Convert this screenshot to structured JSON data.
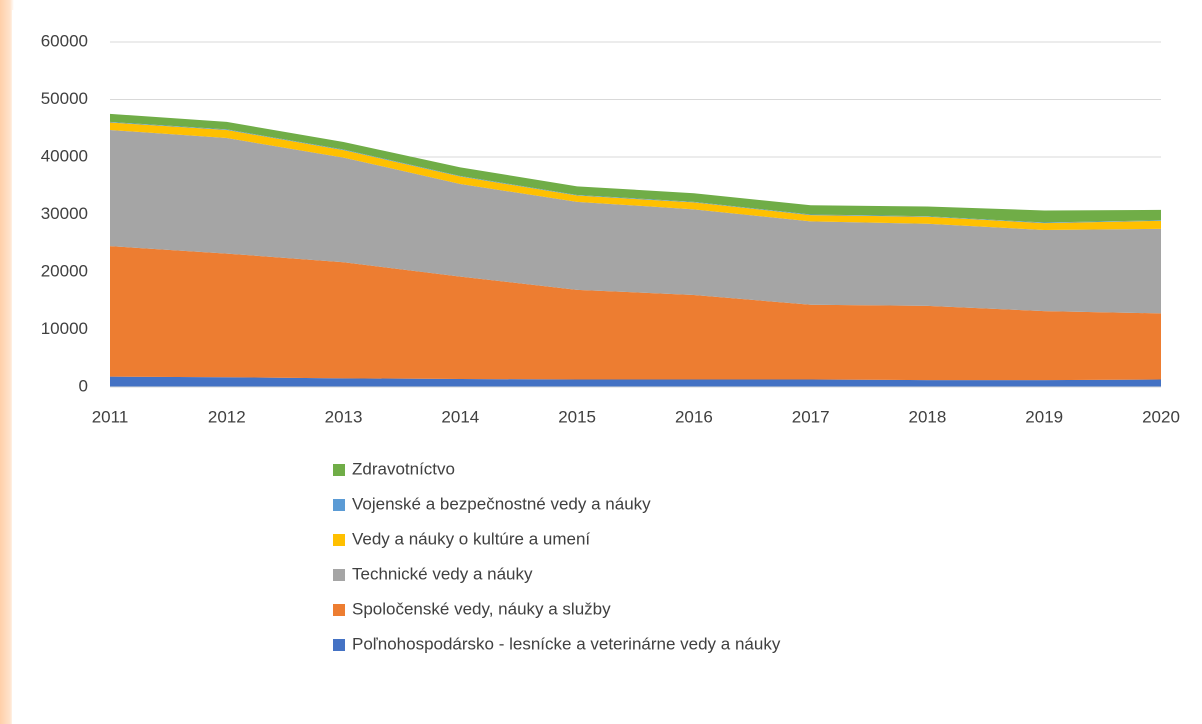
{
  "chart_data": {
    "type": "stacked-area",
    "categories": [
      "2011",
      "2012",
      "2013",
      "2014",
      "2015",
      "2016",
      "2017",
      "2018",
      "2019",
      "2020"
    ],
    "series": [
      {
        "name": "Poľnohospodársko - lesnícke a veterinárne vedy a náuky",
        "color": "#4472c4",
        "values": [
          1800,
          1700,
          1500,
          1400,
          1300,
          1300,
          1300,
          1200,
          1200,
          1300
        ]
      },
      {
        "name": "Spoločenské vedy, náuky a služby",
        "color": "#ed7d31",
        "values": [
          22700,
          21500,
          20200,
          17800,
          15600,
          14700,
          13000,
          12900,
          12000,
          11500
        ]
      },
      {
        "name": "Technické vedy a náuky",
        "color": "#a5a5a5",
        "values": [
          20200,
          20100,
          18200,
          16100,
          15300,
          14900,
          14500,
          14300,
          14100,
          14700
        ]
      },
      {
        "name": "Vedy a náuky o kultúre a umení",
        "color": "#ffc000",
        "values": [
          1300,
          1400,
          1300,
          1300,
          1100,
          1200,
          1100,
          1200,
          1200,
          1400
        ]
      },
      {
        "name": "Vojenské a bezpečnostné vedy a náuky",
        "color": "#5b9bd5",
        "values": [
          100,
          100,
          100,
          100,
          100,
          100,
          100,
          100,
          100,
          100
        ]
      },
      {
        "name": "Zdravotníctvo",
        "color": "#70ad47",
        "values": [
          1400,
          1300,
          1300,
          1500,
          1500,
          1500,
          1600,
          1700,
          2100,
          1800
        ]
      }
    ],
    "ylim": [
      0,
      60000
    ],
    "yticks": [
      0,
      10000,
      20000,
      30000,
      40000,
      50000,
      60000
    ],
    "grid": true,
    "legend": "bottom"
  }
}
